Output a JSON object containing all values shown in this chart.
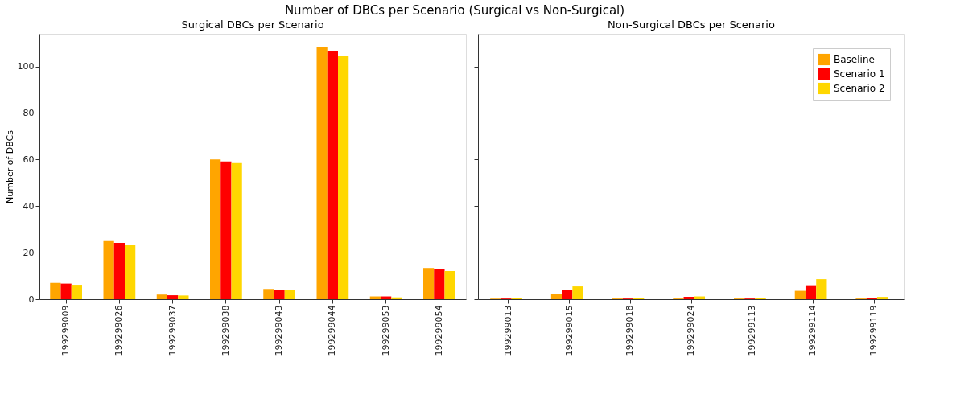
{
  "chart_data": [
    {
      "type": "bar",
      "title": "Surgical DBCs per Scenario",
      "ylabel": "Number of DBCs",
      "annotations": [
        "Number of DBCs per Scenario (Surgical vs Non-Surgical)"
      ],
      "categories": [
        "199299009",
        "199299026",
        "199299037",
        "199299038",
        "199299043",
        "199299044",
        "199299053",
        "199299054"
      ],
      "series": [
        {
          "color": "#ffa500",
          "values": [
            7.0,
            25.0,
            2.0,
            60.0,
            4.4,
            108.3,
            1.2,
            13.4
          ]
        },
        {
          "color": "#ff0000",
          "values": [
            6.7,
            24.2,
            1.7,
            59.2,
            4.1,
            106.5,
            1.2,
            12.9
          ]
        },
        {
          "color": "#ffd700",
          "values": [
            6.2,
            23.3,
            1.6,
            58.5,
            4.1,
            104.3,
            0.8,
            12.1
          ]
        }
      ],
      "ylim": [
        0,
        114
      ],
      "yticks": [
        0,
        20,
        40,
        60,
        80,
        100
      ],
      "grid": false,
      "legend": false
    },
    {
      "type": "bar",
      "title": "Non-Surgical DBCs per Scenario",
      "categories": [
        "199299013",
        "199299015",
        "199299018",
        "199299024",
        "199299113",
        "199299114",
        "199299119"
      ],
      "series": [
        {
          "name": "Baseline",
          "color": "#ffa500",
          "values": [
            0.3,
            2.2,
            0.3,
            0.3,
            0.3,
            3.6,
            0.3
          ]
        },
        {
          "name": "Scenario 1",
          "color": "#ff0000",
          "values": [
            0.3,
            3.8,
            0.3,
            1.0,
            0.3,
            6.0,
            0.6
          ]
        },
        {
          "name": "Scenario 2",
          "color": "#ffd700",
          "values": [
            0.5,
            5.5,
            0.5,
            1.2,
            0.5,
            8.6,
            1.0
          ]
        }
      ],
      "ylim": [
        0,
        114
      ],
      "yticks": [
        0,
        20,
        40,
        60,
        80,
        100
      ],
      "grid": false,
      "legend": "top right",
      "tick_labels": "x"
    }
  ]
}
